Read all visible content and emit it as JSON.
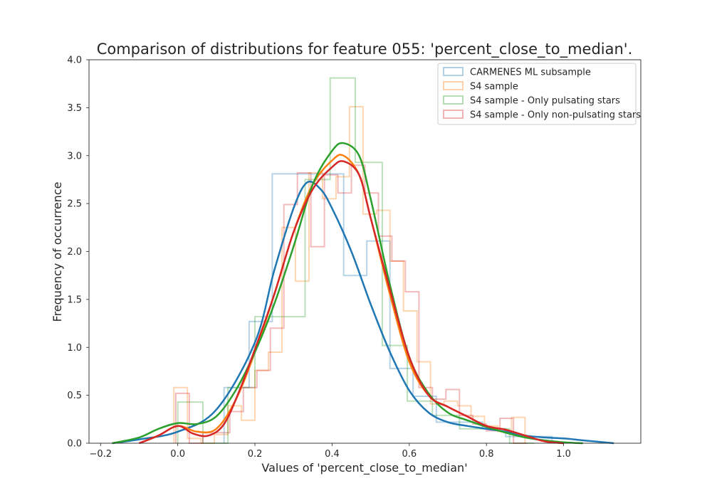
{
  "chart_data": {
    "type": "histogram",
    "title": "Comparison of distributions for feature 055: 'percent_close_to_median'.",
    "xlabel": "Values of 'percent_close_to_median'",
    "ylabel": "Frequency of occurrence",
    "xlim": [
      -0.23,
      1.2
    ],
    "ylim": [
      0.0,
      4.0
    ],
    "xticks": [
      "−0.2",
      "0.0",
      "0.2",
      "0.4",
      "0.6",
      "0.8",
      "1.0"
    ],
    "xtick_values": [
      -0.2,
      0.0,
      0.2,
      0.4,
      0.6,
      0.8,
      1.0
    ],
    "yticks": [
      "0.0",
      "0.5",
      "1.0",
      "1.5",
      "2.0",
      "2.5",
      "3.0",
      "3.5",
      "4.0"
    ],
    "ytick_values": [
      0.0,
      0.5,
      1.0,
      1.5,
      2.0,
      2.5,
      3.0,
      3.5,
      4.0
    ],
    "grid": false,
    "legend_position": "top-right",
    "series": [
      {
        "name": "CARMENES ML subsample",
        "color": "#1f77b4",
        "hist_edges": [
          0.12,
          0.185,
          0.245,
          0.31,
          0.37,
          0.43,
          0.49,
          0.55,
          0.61,
          0.67,
          0.73,
          0.79,
          0.85,
          0.91,
          0.97
        ],
        "hist_values": [
          0.58,
          1.27,
          2.81,
          2.81,
          2.81,
          1.75,
          2.11,
          0.78,
          0.49,
          0.22,
          0.22,
          0.15,
          0.07,
          0.07
        ],
        "kde_x": [
          -0.17,
          -0.1,
          0.0,
          0.1,
          0.2,
          0.25,
          0.3,
          0.335,
          0.37,
          0.4,
          0.45,
          0.5,
          0.55,
          0.6,
          0.65,
          0.7,
          0.75,
          0.8,
          0.85,
          0.9,
          0.95,
          1.0,
          1.05,
          1.13
        ],
        "kde_y": [
          0.0,
          0.04,
          0.12,
          0.35,
          1.05,
          1.8,
          2.45,
          2.72,
          2.65,
          2.45,
          2.0,
          1.45,
          0.95,
          0.55,
          0.32,
          0.22,
          0.18,
          0.15,
          0.12,
          0.08,
          0.06,
          0.05,
          0.03,
          0.0
        ]
      },
      {
        "name": "S4 sample",
        "color": "#ff7f0e",
        "hist_edges": [
          -0.01,
          0.025,
          0.06,
          0.095,
          0.13,
          0.165,
          0.2,
          0.235,
          0.27,
          0.305,
          0.34,
          0.375,
          0.41,
          0.445,
          0.48,
          0.515,
          0.55,
          0.585,
          0.62,
          0.655,
          0.69,
          0.725,
          0.76,
          0.795,
          0.83,
          0.865,
          0.9
        ],
        "hist_values": [
          0.58,
          0.05,
          0.0,
          0.09,
          0.39,
          0.24,
          0.76,
          0.95,
          2.25,
          1.69,
          2.82,
          2.55,
          2.78,
          3.51,
          2.39,
          2.43,
          1.9,
          1.38,
          0.85,
          0.41,
          0.44,
          0.39,
          0.28,
          0.18,
          0.12,
          0.27
        ],
        "kde_x": [
          -0.1,
          -0.05,
          0.0,
          0.05,
          0.1,
          0.15,
          0.2,
          0.25,
          0.3,
          0.35,
          0.4,
          0.43,
          0.47,
          0.5,
          0.55,
          0.6,
          0.65,
          0.7,
          0.75,
          0.8,
          0.85,
          0.9,
          0.95,
          1.0
        ],
        "kde_y": [
          0.0,
          0.08,
          0.18,
          0.12,
          0.15,
          0.45,
          0.95,
          1.55,
          2.2,
          2.7,
          2.95,
          3.0,
          2.8,
          2.35,
          1.55,
          0.85,
          0.5,
          0.38,
          0.28,
          0.18,
          0.14,
          0.08,
          0.02,
          0.0
        ]
      },
      {
        "name": "S4 sample - Only pulsating stars",
        "color": "#2ca02c",
        "hist_edges": [
          0.0,
          0.065,
          0.13,
          0.2,
          0.265,
          0.33,
          0.395,
          0.46,
          0.53,
          0.595,
          0.66,
          0.73,
          0.795,
          0.86,
          0.925
        ],
        "hist_values": [
          0.43,
          0.0,
          0.58,
          1.32,
          1.32,
          2.75,
          3.81,
          2.93,
          1.02,
          0.44,
          0.29,
          0.15,
          0.15,
          0.0
        ],
        "kde_x": [
          -0.17,
          -0.1,
          -0.05,
          0.0,
          0.05,
          0.1,
          0.15,
          0.2,
          0.25,
          0.3,
          0.35,
          0.4,
          0.43,
          0.47,
          0.5,
          0.55,
          0.6,
          0.65,
          0.7,
          0.75,
          0.8,
          0.85,
          0.9,
          0.95,
          1.0,
          1.05
        ],
        "kde_y": [
          0.0,
          0.06,
          0.15,
          0.21,
          0.2,
          0.28,
          0.55,
          0.95,
          1.45,
          2.05,
          2.7,
          3.05,
          3.13,
          3.0,
          2.55,
          1.65,
          0.9,
          0.52,
          0.32,
          0.24,
          0.17,
          0.11,
          0.06,
          0.03,
          0.01,
          0.0
        ]
      },
      {
        "name": "S4 sample - Only non-pulsating stars",
        "color": "#d62728",
        "hist_edges": [
          -0.005,
          0.03,
          0.065,
          0.1,
          0.135,
          0.17,
          0.205,
          0.24,
          0.275,
          0.31,
          0.345,
          0.38,
          0.415,
          0.45,
          0.485,
          0.52,
          0.555,
          0.59,
          0.625,
          0.66,
          0.695,
          0.73,
          0.765,
          0.8,
          0.835,
          0.87,
          0.905
        ],
        "hist_values": [
          0.52,
          0.0,
          0.11,
          0.11,
          0.33,
          0.58,
          0.76,
          1.2,
          2.49,
          2.82,
          2.05,
          2.8,
          2.61,
          2.9,
          2.61,
          2.16,
          1.9,
          1.58,
          0.58,
          0.46,
          0.56,
          0.29,
          0.2,
          0.13,
          0.26,
          0.0
        ],
        "kde_x": [
          -0.1,
          -0.05,
          0.0,
          0.04,
          0.08,
          0.12,
          0.16,
          0.2,
          0.25,
          0.3,
          0.35,
          0.4,
          0.43,
          0.47,
          0.5,
          0.55,
          0.6,
          0.65,
          0.7,
          0.75,
          0.8,
          0.85,
          0.9,
          0.95,
          1.0
        ],
        "kde_y": [
          0.0,
          0.08,
          0.18,
          0.1,
          0.08,
          0.2,
          0.55,
          0.98,
          1.55,
          2.2,
          2.65,
          2.88,
          2.94,
          2.8,
          2.35,
          1.6,
          0.9,
          0.5,
          0.38,
          0.28,
          0.18,
          0.14,
          0.08,
          0.02,
          0.0
        ]
      }
    ]
  }
}
